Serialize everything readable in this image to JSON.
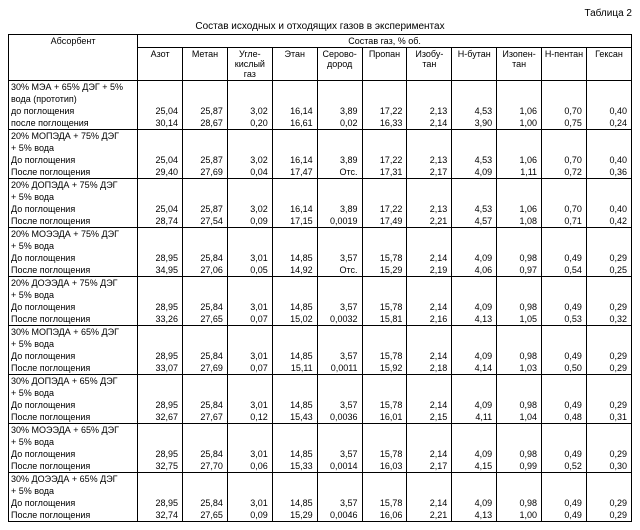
{
  "table_label": "Таблица 2",
  "caption": "Состав исходных и отходящих газов в экспериментах",
  "header": {
    "absorbent": "Абсорбент",
    "group": "Состав газ, % об.",
    "cols": [
      "Азот",
      "Метан",
      "Угле-кислый газ",
      "Этан",
      "Серово-дород",
      "Пропан",
      "Изобу-тан",
      "Н-бутан",
      "Изопен-тан",
      "Н-пентан",
      "Гексан"
    ]
  },
  "row_labels": {
    "before": "до поглощения",
    "before_cap": "До поглощения",
    "after": "после поглощения",
    "after_cap": "После поглощения"
  },
  "groups": [
    {
      "name": "30% МЭА + 65% ДЭГ + 5% вода (прототип)",
      "before": [
        "25,04",
        "25,87",
        "3,02",
        "16,14",
        "3,89",
        "17,22",
        "2,13",
        "4,53",
        "1,06",
        "0,70",
        "0,40"
      ],
      "after": [
        "30,14",
        "28,67",
        "0,20",
        "16,61",
        "0,02",
        "16,33",
        "2,14",
        "3,90",
        "1,00",
        "0,75",
        "0,24"
      ]
    },
    {
      "name": "20% МОПЭДА + 75% ДЭГ + 5% вода",
      "before": [
        "25,04",
        "25,87",
        "3,02",
        "16,14",
        "3,89",
        "17,22",
        "2,13",
        "4,53",
        "1,06",
        "0,70",
        "0,40"
      ],
      "after": [
        "29,40",
        "27,69",
        "0,04",
        "17,47",
        "Отс.",
        "17,31",
        "2,17",
        "4,09",
        "1,11",
        "0,72",
        "0,36"
      ]
    },
    {
      "name": "20% ДОПЭДА + 75% ДЭГ + 5% вода",
      "before": [
        "25,04",
        "25,87",
        "3,02",
        "16,14",
        "3,89",
        "17,22",
        "2,13",
        "4,53",
        "1,06",
        "0,70",
        "0,40"
      ],
      "after": [
        "28,74",
        "27,54",
        "0,09",
        "17,15",
        "0,0019",
        "17,49",
        "2,21",
        "4,57",
        "1,08",
        "0,71",
        "0,42"
      ]
    },
    {
      "name": "20% МОЭЭДА + 75% ДЭГ + 5% вода",
      "before": [
        "28,95",
        "25,84",
        "3,01",
        "14,85",
        "3,57",
        "15,78",
        "2,14",
        "4,09",
        "0,98",
        "0,49",
        "0,29"
      ],
      "after": [
        "34,95",
        "27,06",
        "0,05",
        "14,92",
        "Отс.",
        "15,29",
        "2,19",
        "4,06",
        "0,97",
        "0,54",
        "0,25"
      ]
    },
    {
      "name": "20% ДОЭЭДА + 75% ДЭГ + 5% вода",
      "before": [
        "28,95",
        "25,84",
        "3,01",
        "14,85",
        "3,57",
        "15,78",
        "2,14",
        "4,09",
        "0,98",
        "0,49",
        "0,29"
      ],
      "after": [
        "33,26",
        "27,65",
        "0,07",
        "15,02",
        "0,0032",
        "15,81",
        "2,16",
        "4,13",
        "1,05",
        "0,53",
        "0,32"
      ]
    },
    {
      "name": "30% МОПЭДА + 65% ДЭГ + 5% вода",
      "before": [
        "28,95",
        "25,84",
        "3,01",
        "14,85",
        "3,57",
        "15,78",
        "2,14",
        "4,09",
        "0,98",
        "0,49",
        "0,29"
      ],
      "after": [
        "33,07",
        "27,69",
        "0,07",
        "15,11",
        "0,0011",
        "15,92",
        "2,18",
        "4,14",
        "1,03",
        "0,50",
        "0,29"
      ]
    },
    {
      "name": "30% ДОПЭДА + 65% ДЭГ + 5% вода",
      "before": [
        "28,95",
        "25,84",
        "3,01",
        "14,85",
        "3,57",
        "15,78",
        "2,14",
        "4,09",
        "0,98",
        "0,49",
        "0,29"
      ],
      "after": [
        "32,67",
        "27,67",
        "0,12",
        "15,43",
        "0,0036",
        "16,01",
        "2,15",
        "4,11",
        "1,04",
        "0,48",
        "0,31"
      ]
    },
    {
      "name": "30% МОЭЭДА + 65% ДЭГ + 5% вода",
      "before": [
        "28,95",
        "25,84",
        "3,01",
        "14,85",
        "3,57",
        "15,78",
        "2,14",
        "4,09",
        "0,98",
        "0,49",
        "0,29"
      ],
      "after": [
        "32,75",
        "27,70",
        "0,06",
        "15,33",
        "0,0014",
        "16,03",
        "2,17",
        "4,15",
        "0,99",
        "0,52",
        "0,30"
      ]
    },
    {
      "name": "30% ДОЭЭДА + 65% ДЭГ + 5% вода",
      "before": [
        "28,95",
        "25,84",
        "3,01",
        "14,85",
        "3,57",
        "15,78",
        "2,14",
        "4,09",
        "0,98",
        "0,49",
        "0,29"
      ],
      "after": [
        "32,74",
        "27,65",
        "0,09",
        "15,29",
        "0,0046",
        "16,06",
        "2,21",
        "4,13",
        "1,00",
        "0,49",
        "0,29"
      ]
    }
  ]
}
